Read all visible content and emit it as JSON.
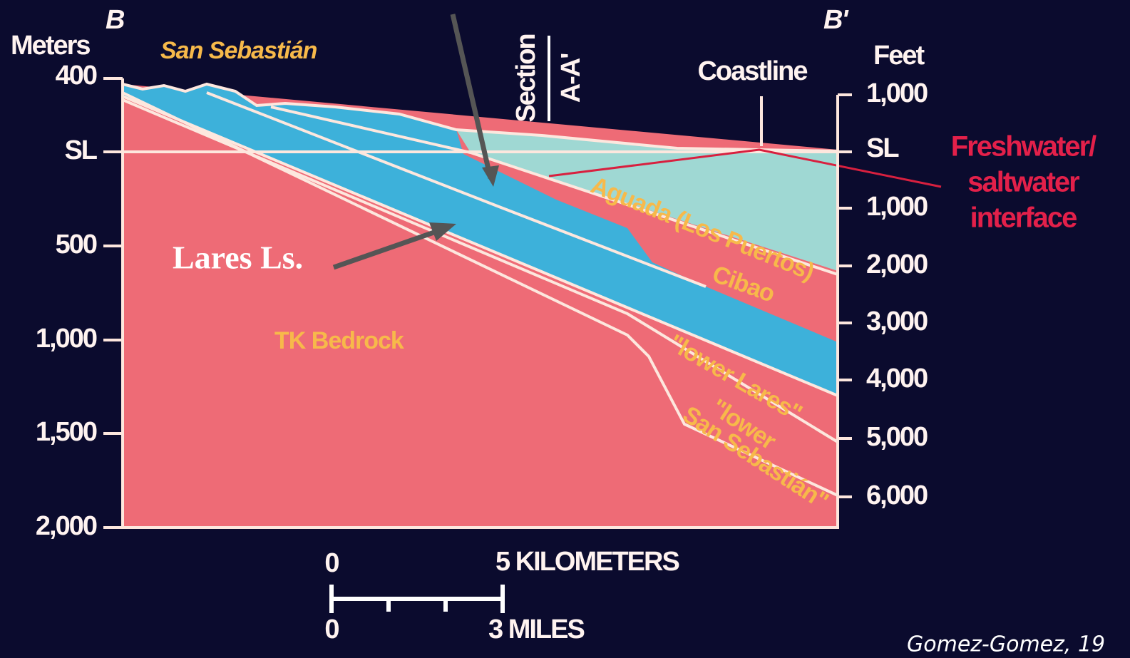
{
  "labels": {
    "b": "B",
    "b_prime": "B'",
    "meters": "Meters",
    "feet": "Feet",
    "san_sebastian": "San Sebastián",
    "section": "Section",
    "section_id": "A-A'",
    "coastline": "Coastline",
    "interface": [
      "Freshwater/",
      "saltwater",
      "interface"
    ],
    "lares": "Lares Ls.",
    "bedrock": "TK Bedrock",
    "cibao": "Cibao",
    "aguada": "Aguada (Los Puertos)",
    "lower_lares": "\"lower Lares\"",
    "lower_san_sebastian": [
      "\"lower",
      "San Sebastián\""
    ],
    "credit": "Gomez-Gomez, 19"
  },
  "left_axis": [
    "400",
    "SL",
    "500",
    "1,000",
    "1,500",
    "2,000"
  ],
  "right_axis": [
    "1,000",
    "SL",
    "1,000",
    "2,000",
    "3,000",
    "4,000",
    "5,000",
    "6,000"
  ],
  "scale": {
    "km_zero": "0",
    "km": "5 KILOMETERS",
    "mi_zero": "0",
    "mi": "3 MILES"
  }
}
